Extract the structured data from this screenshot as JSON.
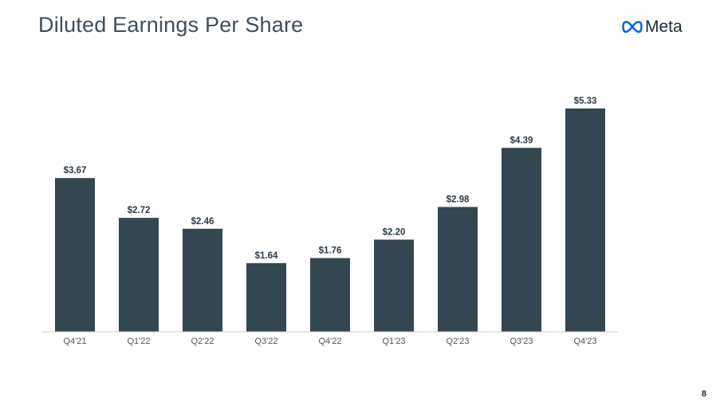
{
  "slide": {
    "title": "Diluted Earnings Per Share",
    "logo_text": "Meta",
    "page_number": "8"
  },
  "colors": {
    "bar": "#344650",
    "axis": "#c8cdd1",
    "logo_blue": "#0668e1"
  },
  "chart_data": {
    "type": "bar",
    "title": "Diluted Earnings Per Share",
    "categories": [
      "Q4'21",
      "Q1'22",
      "Q2'22",
      "Q3'22",
      "Q4'22",
      "Q1'23",
      "Q2'23",
      "Q3'23",
      "Q4'23"
    ],
    "values": [
      3.67,
      2.72,
      2.46,
      1.64,
      1.76,
      2.2,
      2.98,
      4.39,
      5.33
    ],
    "labels": [
      "$3.67",
      "$2.72",
      "$2.46",
      "$1.64",
      "$1.76",
      "$2.20",
      "$2.98",
      "$4.39",
      "$5.33"
    ],
    "xlabel": "",
    "ylabel": "",
    "ylim": [
      0,
      5.33
    ],
    "grid": false,
    "legend": "none"
  }
}
